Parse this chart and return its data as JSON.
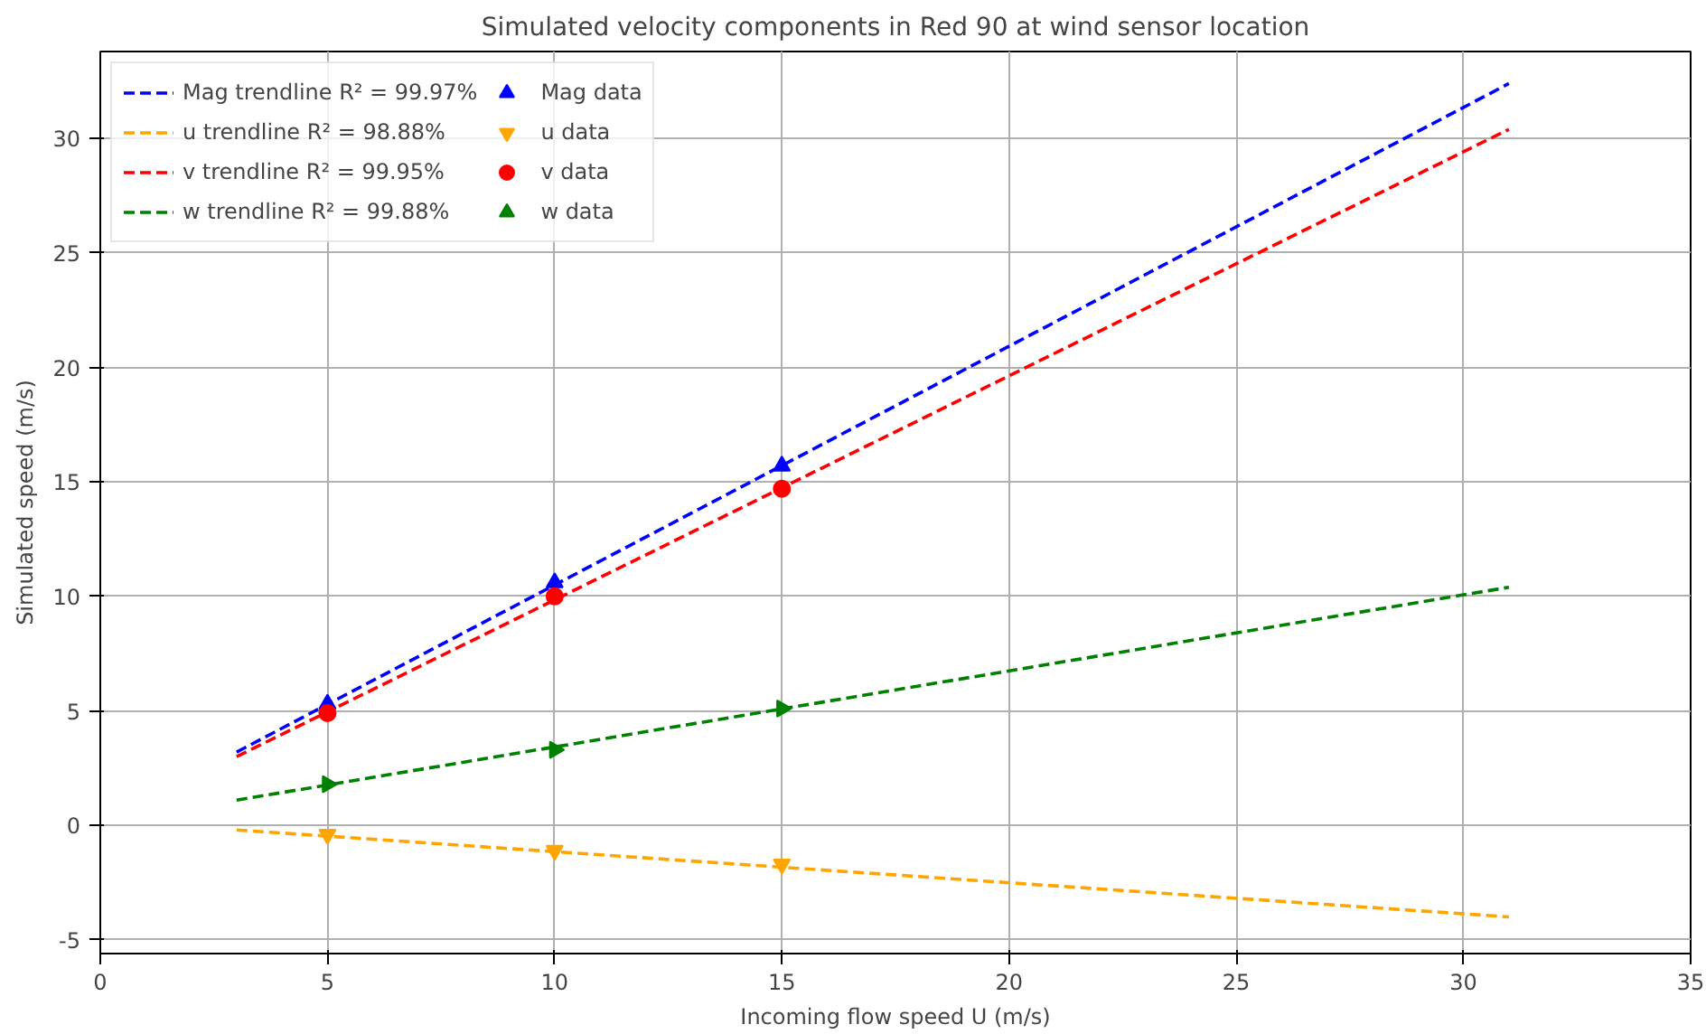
{
  "chart_data": {
    "type": "scatter",
    "title": "Simulated velocity components in Red 90 at wind sensor location",
    "xlabel": "Incoming flow speed U (m/s)",
    "ylabel": "Simulated speed (m/s)",
    "xlim": [
      0,
      35
    ],
    "xticks": [
      0,
      5,
      10,
      15,
      20,
      25,
      30,
      35
    ],
    "ylim": [
      -5.6,
      33.8
    ],
    "yticks": [
      -5,
      0,
      5,
      10,
      15,
      20,
      25,
      30
    ],
    "grid": true,
    "legend": "top left",
    "series": [
      {
        "name": "Mag trendline R² = 99.97%",
        "type": "line",
        "line_style": "dashed",
        "color": "#0000ff",
        "x": [
          3,
          31
        ],
        "values": [
          3.2,
          32.4
        ]
      },
      {
        "name": "u trendline R² = 98.88%",
        "type": "line",
        "line_style": "dashed",
        "color": "#ffa500",
        "x": [
          3,
          31
        ],
        "values": [
          -0.2,
          -4.0
        ]
      },
      {
        "name": "v trendline R² = 99.95%",
        "type": "line",
        "line_style": "dashed",
        "color": "#ff0000",
        "x": [
          3,
          31
        ],
        "values": [
          3.0,
          30.4
        ]
      },
      {
        "name": "w trendline R² = 99.88%",
        "type": "line",
        "line_style": "dashed",
        "color": "#008000",
        "x": [
          3,
          31
        ],
        "values": [
          1.1,
          10.4
        ]
      },
      {
        "name": "Mag data",
        "marker": "triangle",
        "color": "#0000ff",
        "x": [
          5,
          10,
          15
        ],
        "values": [
          5.3,
          10.6,
          15.7
        ]
      },
      {
        "name": "u data",
        "marker": "triangle_down",
        "color": "#ffa500",
        "x": [
          5,
          10,
          15
        ],
        "values": [
          -0.4,
          -1.1,
          -1.7
        ]
      },
      {
        "name": "v data",
        "marker": "circle",
        "color": "#ff0000",
        "x": [
          5,
          10,
          15
        ],
        "values": [
          4.9,
          10.0,
          14.7
        ]
      },
      {
        "name": "w data",
        "marker": "triangle_right",
        "color": "#008000",
        "x": [
          5,
          10,
          15
        ],
        "values": [
          1.8,
          3.3,
          5.1
        ]
      }
    ]
  }
}
